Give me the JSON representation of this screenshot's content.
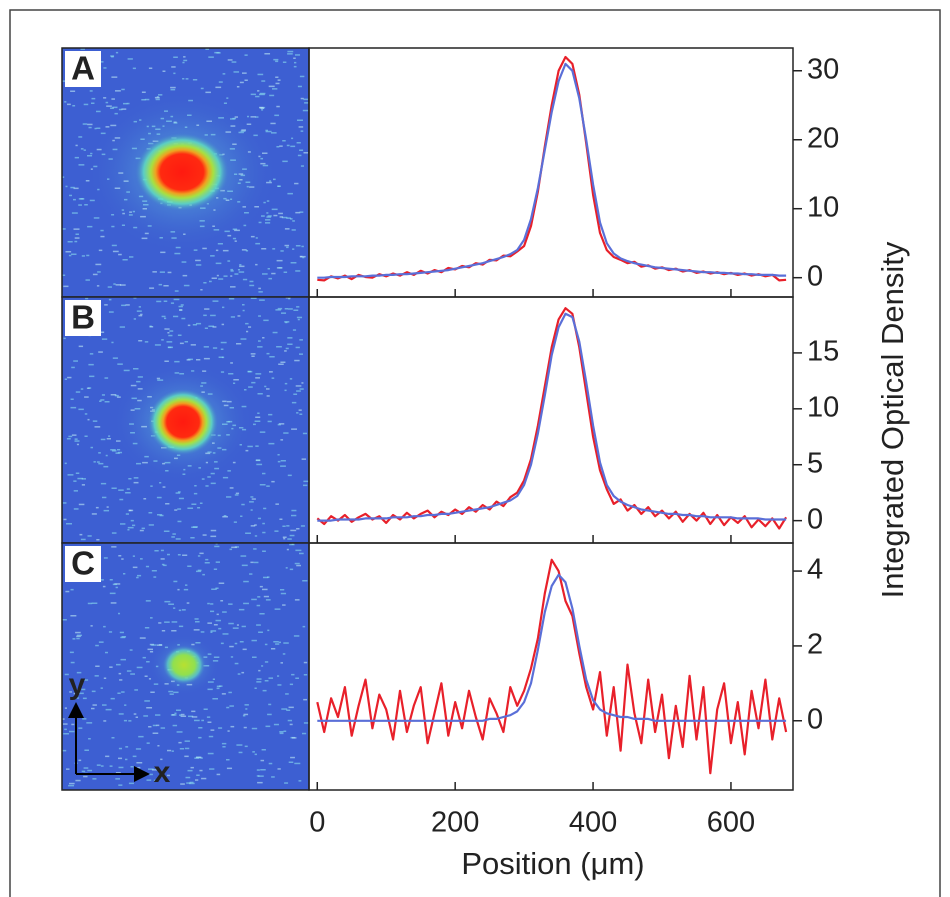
{
  "chart_data": [
    {
      "type": "line",
      "label": "A",
      "x": [
        0,
        10,
        20,
        30,
        40,
        50,
        60,
        70,
        80,
        90,
        100,
        110,
        120,
        130,
        140,
        150,
        160,
        170,
        180,
        190,
        200,
        210,
        220,
        230,
        240,
        250,
        260,
        270,
        280,
        290,
        300,
        310,
        320,
        330,
        340,
        350,
        360,
        370,
        380,
        390,
        400,
        410,
        420,
        430,
        440,
        450,
        460,
        470,
        480,
        490,
        500,
        510,
        520,
        530,
        540,
        550,
        560,
        570,
        580,
        590,
        600,
        610,
        620,
        630,
        640,
        650,
        660,
        670,
        680
      ],
      "series": [
        {
          "color": "#e8202a",
          "values": [
            -0.3,
            -0.4,
            0.2,
            -0.1,
            0.3,
            -0.2,
            0.4,
            0.1,
            0.0,
            0.5,
            0.2,
            0.6,
            0.3,
            0.8,
            0.4,
            1.0,
            0.6,
            1.1,
            0.8,
            1.4,
            1.2,
            1.7,
            1.5,
            2.1,
            1.9,
            2.6,
            2.5,
            3.2,
            3.1,
            3.8,
            4.6,
            7.5,
            12.5,
            19,
            25,
            30,
            32,
            31,
            26.5,
            19.5,
            12,
            6.5,
            4,
            3,
            2.6,
            2.1,
            2.3,
            1.6,
            1.8,
            1.3,
            1.5,
            1.1,
            1.3,
            0.9,
            1.1,
            0.7,
            0.9,
            0.6,
            0.8,
            0.5,
            0.7,
            0.4,
            0.6,
            0.3,
            0.5,
            0.2,
            0.4,
            -0.4,
            -0.3
          ]
        },
        {
          "color": "#5a6fd8",
          "values": [
            0.0,
            0.0,
            0.1,
            0.1,
            0.1,
            0.2,
            0.2,
            0.2,
            0.3,
            0.3,
            0.4,
            0.4,
            0.5,
            0.5,
            0.6,
            0.7,
            0.8,
            0.9,
            1.0,
            1.1,
            1.3,
            1.5,
            1.7,
            1.9,
            2.1,
            2.4,
            2.7,
            3.0,
            3.4,
            4.0,
            5.5,
            8.5,
            13,
            18.5,
            24,
            28.5,
            31,
            30,
            26,
            20,
            13.5,
            8,
            5,
            3.5,
            2.8,
            2.4,
            2.1,
            1.9,
            1.7,
            1.5,
            1.4,
            1.3,
            1.2,
            1.1,
            1.0,
            0.9,
            0.8,
            0.8,
            0.7,
            0.7,
            0.6,
            0.6,
            0.5,
            0.5,
            0.4,
            0.4,
            0.4,
            0.3,
            0.3
          ]
        }
      ],
      "xlim": [
        -12,
        690
      ],
      "xticks": [
        0,
        200,
        400,
        600
      ],
      "ylim": [
        -2.8,
        33.3
      ],
      "yticks": [
        0,
        10,
        20,
        30
      ]
    },
    {
      "type": "line",
      "label": "B",
      "x": [
        0,
        10,
        20,
        30,
        40,
        50,
        60,
        70,
        80,
        90,
        100,
        110,
        120,
        130,
        140,
        150,
        160,
        170,
        180,
        190,
        200,
        210,
        220,
        230,
        240,
        250,
        260,
        270,
        280,
        290,
        300,
        310,
        320,
        330,
        340,
        350,
        360,
        370,
        380,
        390,
        400,
        410,
        420,
        430,
        440,
        450,
        460,
        470,
        480,
        490,
        500,
        510,
        520,
        530,
        540,
        550,
        560,
        570,
        580,
        590,
        600,
        610,
        620,
        630,
        640,
        650,
        660,
        670,
        680
      ],
      "series": [
        {
          "color": "#e8202a",
          "values": [
            0.2,
            -0.3,
            0.4,
            0.0,
            0.5,
            -0.1,
            0.3,
            0.6,
            0.1,
            0.4,
            -0.2,
            0.5,
            0.1,
            0.7,
            0.2,
            0.6,
            0.9,
            0.3,
            0.8,
            0.5,
            1.0,
            0.6,
            1.2,
            0.8,
            1.4,
            1.0,
            1.7,
            1.3,
            2.1,
            2.5,
            3.6,
            5.5,
            8.5,
            12,
            15.5,
            18,
            19,
            18.5,
            15.5,
            11.5,
            7.5,
            4.5,
            2.8,
            1.5,
            1.9,
            0.9,
            1.4,
            0.6,
            1.2,
            0.4,
            0.9,
            0.2,
            0.8,
            -0.1,
            0.6,
            0.0,
            0.7,
            -0.3,
            0.5,
            -0.4,
            0.3,
            -0.2,
            0.4,
            -0.6,
            0.1,
            -0.5,
            0.2,
            -0.7,
            0.3
          ]
        },
        {
          "color": "#5a6fd8",
          "values": [
            0.0,
            0.0,
            0.0,
            0.1,
            0.1,
            0.1,
            0.1,
            0.2,
            0.2,
            0.2,
            0.2,
            0.3,
            0.3,
            0.3,
            0.4,
            0.4,
            0.5,
            0.5,
            0.6,
            0.6,
            0.7,
            0.8,
            0.9,
            1.0,
            1.1,
            1.2,
            1.4,
            1.6,
            1.8,
            2.2,
            3.2,
            5.0,
            7.8,
            11.2,
            14.8,
            17.3,
            18.5,
            18.2,
            16,
            12.4,
            8.5,
            5.2,
            3.2,
            2.2,
            1.7,
            1.4,
            1.2,
            1.0,
            0.9,
            0.8,
            0.7,
            0.6,
            0.6,
            0.5,
            0.5,
            0.4,
            0.4,
            0.3,
            0.3,
            0.3,
            0.3,
            0.2,
            0.2,
            0.2,
            0.2,
            0.1,
            0.1,
            0.1,
            0.1
          ]
        }
      ],
      "xlim": [
        -12,
        690
      ],
      "xticks": [
        0,
        200,
        400,
        600
      ],
      "ylim": [
        -2,
        20
      ],
      "yticks": [
        0,
        5,
        10,
        15
      ],
      "ylabel": "Integrated Optical Density"
    },
    {
      "type": "line",
      "label": "C",
      "annotations": [
        "y",
        "x"
      ],
      "x": [
        0,
        10,
        20,
        30,
        40,
        50,
        60,
        70,
        80,
        90,
        100,
        110,
        120,
        130,
        140,
        150,
        160,
        170,
        180,
        190,
        200,
        210,
        220,
        230,
        240,
        250,
        260,
        270,
        280,
        290,
        300,
        310,
        320,
        330,
        340,
        350,
        360,
        370,
        380,
        390,
        400,
        410,
        420,
        430,
        440,
        450,
        460,
        470,
        480,
        490,
        500,
        510,
        520,
        530,
        540,
        550,
        560,
        570,
        580,
        590,
        600,
        610,
        620,
        630,
        640,
        650,
        660,
        670,
        680
      ],
      "series": [
        {
          "color": "#e8202a",
          "values": [
            0.5,
            -0.3,
            0.6,
            0.1,
            0.9,
            -0.4,
            0.4,
            1.1,
            -0.2,
            0.7,
            0.3,
            -0.5,
            0.8,
            -0.3,
            0.4,
            0.9,
            -0.6,
            0.2,
            1.0,
            -0.4,
            0.5,
            -0.2,
            0.8,
            0.1,
            -0.5,
            0.6,
            0.2,
            -0.3,
            0.9,
            0.4,
            0.8,
            1.4,
            2.2,
            3.4,
            4.3,
            4.0,
            3.2,
            2.8,
            1.8,
            0.9,
            0.3,
            1.3,
            -0.4,
            0.9,
            -0.8,
            1.5,
            0.2,
            -0.6,
            1.1,
            -0.3,
            0.7,
            -1.0,
            0.4,
            -0.7,
            1.2,
            -0.5,
            0.9,
            -1.4,
            0.3,
            1.0,
            -0.6,
            0.5,
            -0.9,
            0.8,
            -0.2,
            1.1,
            -0.5,
            0.6,
            -0.3
          ]
        },
        {
          "color": "#5a6fd8",
          "values": [
            0,
            0,
            0,
            0,
            0,
            0,
            0,
            0,
            0,
            0,
            0,
            0,
            0,
            0,
            0,
            0,
            0,
            0,
            0,
            0,
            0,
            0,
            0,
            0,
            0,
            0.05,
            0.05,
            0.1,
            0.15,
            0.25,
            0.5,
            1.0,
            1.9,
            2.9,
            3.6,
            3.9,
            3.7,
            3.0,
            2.0,
            1.1,
            0.55,
            0.3,
            0.2,
            0.15,
            0.1,
            0.1,
            0.05,
            0.05,
            0.05,
            0,
            0,
            0,
            0,
            0,
            0,
            0,
            0,
            0,
            0,
            0,
            0,
            0,
            0,
            0,
            0,
            0,
            0,
            0,
            0
          ]
        }
      ],
      "xlim": [
        -12,
        690
      ],
      "xticks": [
        0,
        200,
        400,
        600
      ],
      "ylim": [
        -1.85,
        4.75
      ],
      "yticks": [
        0,
        2,
        4
      ],
      "xlabel": "Position (μm)"
    }
  ]
}
